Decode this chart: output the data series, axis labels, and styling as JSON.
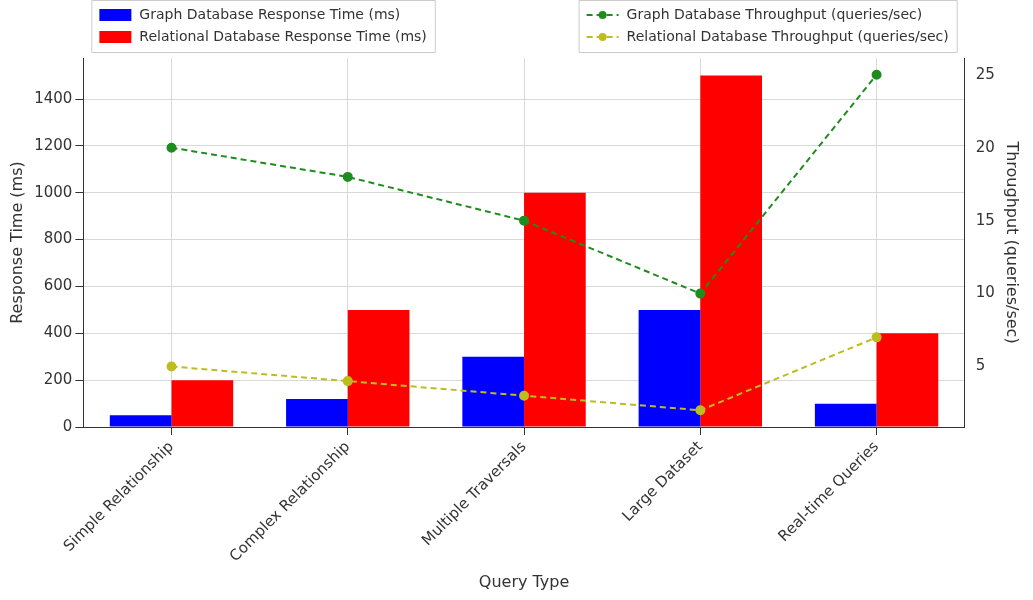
{
  "chart_data": {
    "type": "bar",
    "xlabel": "Query Type",
    "ylabel": "Response Time (ms)",
    "y2label": "Throughput (queries/sec)",
    "categories": [
      "Simple Relationship",
      "Complex Relationship",
      "Multiple Traversals",
      "Large Dataset",
      "Real-time Queries"
    ],
    "series": [
      {
        "name": "Graph Database Response Time (ms)",
        "color": "#0000ff",
        "values": [
          50,
          120,
          300,
          500,
          100
        ]
      },
      {
        "name": "Relational Database Response Time (ms)",
        "color": "#ff0000",
        "values": [
          200,
          500,
          1000,
          1500,
          400
        ]
      },
      {
        "name": "Graph Database Throughput (queries/sec)",
        "type": "line",
        "axis": "y2",
        "color": "#1e8c1e",
        "values": [
          20,
          18,
          15,
          10,
          25
        ]
      },
      {
        "name": "Relational Database Throughput (queries/sec)",
        "type": "line",
        "axis": "y2",
        "color": "#bdbd1e",
        "values": [
          5,
          4,
          3,
          2,
          7
        ]
      }
    ],
    "ylim": [
      0,
      1575
    ],
    "yticks": [
      0,
      200,
      400,
      600,
      800,
      1000,
      1200,
      1400
    ],
    "y2lim": [
      0.85,
      26.15
    ],
    "y2ticks": [
      5,
      10,
      15,
      20,
      25
    ],
    "grid": true,
    "legend": "top",
    "marker": "circle",
    "line_style": "dashed"
  }
}
